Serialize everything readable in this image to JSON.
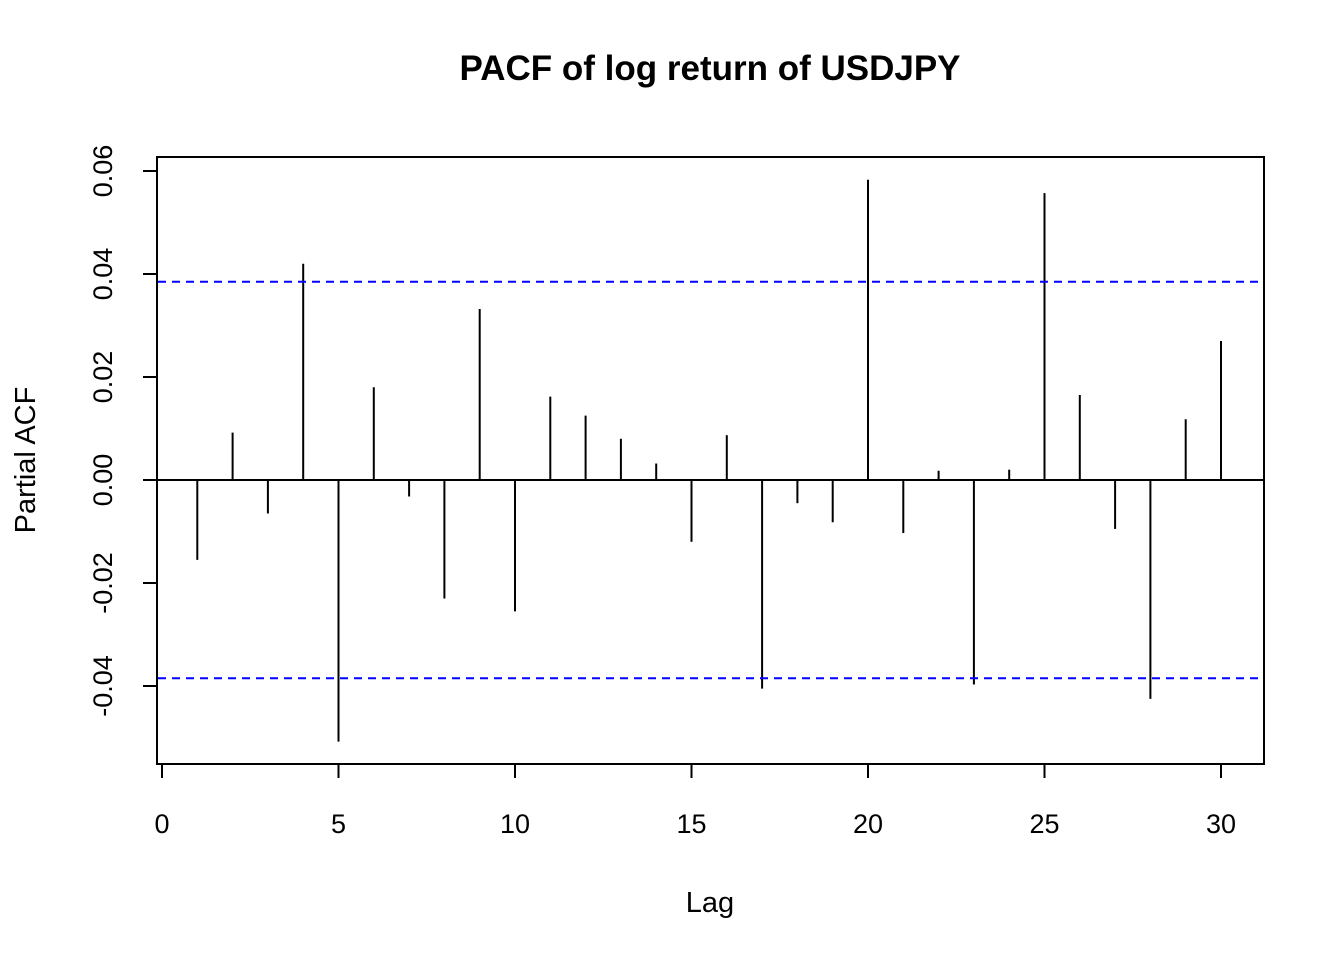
{
  "chart_data": {
    "type": "bar",
    "title": "PACF of log return of USDJPY",
    "xlabel": "Lag",
    "ylabel": "Partial ACF",
    "xlim": [
      0,
      30
    ],
    "ylim": [
      -0.06,
      0.063
    ],
    "x_ticks": [
      0,
      5,
      10,
      15,
      20,
      25,
      30
    ],
    "y_ticks": [
      -0.04,
      -0.02,
      0.0,
      0.02,
      0.04,
      0.06
    ],
    "y_tick_labels": [
      "-0.04",
      "-0.02",
      "0.00",
      "0.02",
      "0.04",
      "0.06"
    ],
    "confidence_bound": 0.0385,
    "confidence_color": "#0000ff",
    "bar_color": "#000000",
    "lags": [
      1,
      2,
      3,
      4,
      5,
      6,
      7,
      8,
      9,
      10,
      11,
      12,
      13,
      14,
      15,
      16,
      17,
      18,
      19,
      20,
      21,
      22,
      23,
      24,
      25,
      26,
      27,
      28,
      29,
      30
    ],
    "values": [
      -0.0155,
      0.0092,
      -0.0065,
      0.042,
      -0.0508,
      0.018,
      -0.0032,
      -0.023,
      0.0332,
      -0.0255,
      0.0162,
      0.0125,
      0.008,
      0.0032,
      -0.012,
      0.0087,
      -0.0405,
      -0.0045,
      -0.0082,
      0.0583,
      -0.0103,
      0.0018,
      -0.0397,
      0.002,
      0.0557,
      0.0165,
      -0.0095,
      -0.0425,
      0.0118,
      0.027
    ]
  }
}
